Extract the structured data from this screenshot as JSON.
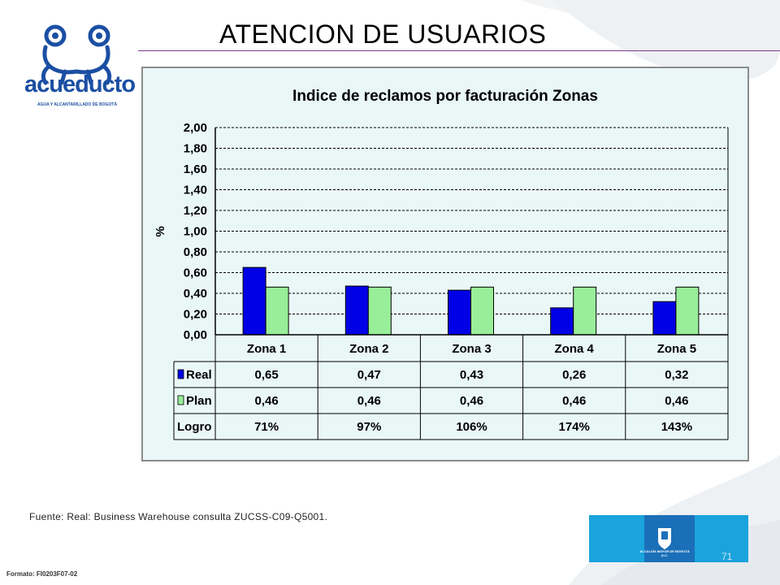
{
  "header": {
    "title": "ATENCION DE USUARIOS",
    "logo_word": "acueducto",
    "logo_sub": "AGUA Y ALCANTARILLADO DE BOGOTÁ"
  },
  "footer": {
    "source": "Fuente: Real: Business Warehouse consulta ZUCSS-C09-Q5001.",
    "format_code": "Formato: FI0203F07-02",
    "page_number": "71",
    "crest_label": "ALCALDÍA MAYOR DE BOGOTÁ D.C."
  },
  "colors": {
    "real": "#0000e6",
    "plan": "#99ee99",
    "frame_bg": "#eaf7f7",
    "logo_blue": "#1b4fa3",
    "accent_blue": "#1aa3dc"
  },
  "chart_data": {
    "type": "bar",
    "title": "Indice de reclamos por facturación Zonas",
    "ylabel": "%",
    "ylim": [
      0,
      2
    ],
    "yticks": [
      "0,00",
      "0,20",
      "0,40",
      "0,60",
      "0,80",
      "1,00",
      "1,20",
      "1,40",
      "1,60",
      "1,80",
      "2,00"
    ],
    "categories": [
      "Zona 1",
      "Zona 2",
      "Zona 3",
      "Zona 4",
      "Zona 5"
    ],
    "series": [
      {
        "name": "Real",
        "values": [
          0.65,
          0.47,
          0.43,
          0.26,
          0.32
        ],
        "labels": [
          "0,65",
          "0,47",
          "0,43",
          "0,26",
          "0,32"
        ]
      },
      {
        "name": "Plan",
        "values": [
          0.46,
          0.46,
          0.46,
          0.46,
          0.46
        ],
        "labels": [
          "0,46",
          "0,46",
          "0,46",
          "0,46",
          "0,46"
        ]
      }
    ],
    "table_extra_row": {
      "name": "Logro",
      "values": [
        "71%",
        "97%",
        "106%",
        "174%",
        "143%"
      ]
    },
    "grid": true
  }
}
